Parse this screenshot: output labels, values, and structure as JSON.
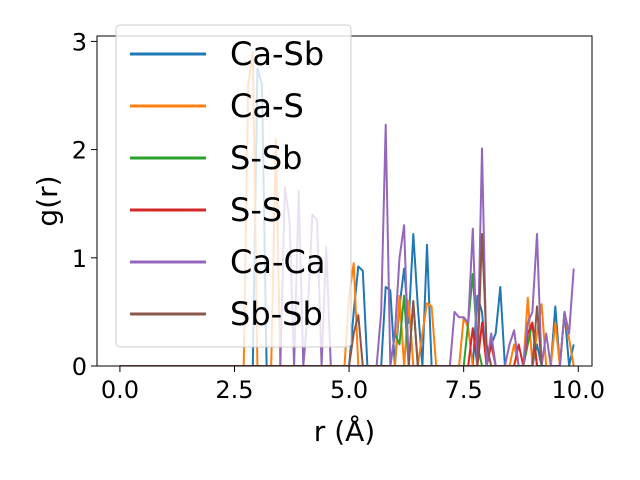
{
  "chart_data": {
    "type": "line",
    "xlabel": "r (Å)",
    "ylabel": "g(r)",
    "xlim": [
      -0.5,
      10.3
    ],
    "ylim": [
      0,
      3.05
    ],
    "xticks": [
      "0.0",
      "2.5",
      "5.0",
      "7.5",
      "10.0"
    ],
    "xtick_values": [
      0,
      2.5,
      5,
      7.5,
      10
    ],
    "yticks": [
      "0",
      "1",
      "2",
      "3"
    ],
    "ytick_values": [
      0,
      1,
      2,
      3
    ],
    "grid": false,
    "legend_position": "upper-left",
    "series": [
      {
        "name": "Ca-Sb",
        "color": "#1f77b4",
        "x": [
          0,
          2.7,
          2.8,
          2.9,
          3.0,
          3.1,
          3.2,
          3.3,
          3.4,
          3.5,
          3.6,
          3.7,
          3.8,
          3.9,
          4.0,
          4.1,
          4.2,
          4.3,
          4.4,
          4.5,
          4.6,
          4.7,
          4.8,
          4.9,
          5.0,
          5.1,
          5.2,
          5.3,
          5.4,
          5.5,
          5.6,
          5.7,
          5.8,
          5.9,
          6.0,
          6.1,
          6.2,
          6.3,
          6.4,
          6.5,
          6.6,
          6.7,
          6.8,
          6.9,
          7.0,
          7.1,
          7.2,
          7.3,
          7.4,
          7.5,
          7.6,
          7.7,
          7.8,
          7.9,
          8.0,
          8.1,
          8.2,
          8.3,
          8.4,
          8.5,
          8.6,
          8.7,
          8.8,
          8.9,
          9.0,
          9.1,
          9.2,
          9.3,
          9.4,
          9.5,
          9.6,
          9.7,
          9.8,
          9.9
        ],
        "y": [
          0,
          0,
          0,
          0,
          2.75,
          2.6,
          0,
          0,
          0,
          0,
          0,
          0,
          0,
          0,
          0,
          0,
          0,
          0,
          0,
          0,
          0,
          0,
          0,
          0,
          0,
          0.5,
          0.92,
          0.88,
          0,
          0,
          0,
          0,
          0.73,
          0.7,
          0,
          0.55,
          0.9,
          0.4,
          1.22,
          0.55,
          0,
          1.12,
          0,
          0,
          0,
          0,
          0,
          0,
          0,
          0,
          0,
          0,
          0.65,
          0.5,
          0,
          0.2,
          0.3,
          0.73,
          0,
          0,
          0,
          0,
          0,
          0,
          0,
          0.2,
          0,
          0,
          0,
          0.55,
          0,
          0.5,
          0,
          0.2
        ]
      },
      {
        "name": "Ca-S",
        "color": "#ff7f0e",
        "x": [
          0,
          2.7,
          2.8,
          2.9,
          3.0,
          3.1,
          3.2,
          3.3,
          3.4,
          3.5,
          3.6,
          3.7,
          3.8,
          3.9,
          4.0,
          4.1,
          4.2,
          4.3,
          4.4,
          4.5,
          4.6,
          4.7,
          4.8,
          4.9,
          5.0,
          5.1,
          5.2,
          5.3,
          5.4,
          5.5,
          5.6,
          5.7,
          5.8,
          5.9,
          6.0,
          6.1,
          6.2,
          6.3,
          6.4,
          6.5,
          6.6,
          6.7,
          6.8,
          6.9,
          7.0,
          7.1,
          7.2,
          7.3,
          7.4,
          7.5,
          7.6,
          7.7,
          7.8,
          7.9,
          8.0,
          8.1,
          8.2,
          8.3,
          8.4,
          8.5,
          8.6,
          8.7,
          8.8,
          8.9,
          9.0,
          9.1,
          9.2,
          9.3,
          9.4,
          9.5,
          9.6,
          9.7,
          9.8,
          9.9
        ],
        "y": [
          0,
          0,
          2.6,
          2.9,
          0,
          0,
          0,
          0,
          2.1,
          0,
          0,
          0,
          0,
          0,
          0,
          0,
          0,
          0,
          0,
          0,
          0,
          0,
          0,
          0,
          0.65,
          0.95,
          0,
          0,
          0,
          0,
          0,
          0,
          0,
          0,
          0,
          0.65,
          0,
          0.6,
          0,
          0,
          0.3,
          0.58,
          0.55,
          0,
          0,
          0,
          0,
          0,
          0,
          0.45,
          0.35,
          0,
          0,
          0,
          0,
          0,
          0,
          0,
          0,
          0,
          0.2,
          0,
          0,
          0.63,
          0,
          0.3,
          0.57,
          0,
          0,
          0.4,
          0,
          0.5,
          0.25,
          0
        ]
      },
      {
        "name": "S-Sb",
        "color": "#2ca02c",
        "x": [
          0,
          5.9,
          6.0,
          6.1,
          6.2,
          6.3,
          6.4,
          6.5,
          7.4,
          7.5,
          7.6,
          7.7,
          7.8,
          7.9,
          8.8,
          8.9,
          9.0,
          9.1,
          9.2
        ],
        "y": [
          0,
          0,
          0.3,
          0.2,
          0.65,
          0,
          0.6,
          0,
          0,
          0,
          0.4,
          0.85,
          0.2,
          0,
          0,
          0.2,
          0.4,
          0,
          0
        ]
      },
      {
        "name": "S-S",
        "color": "#d62728",
        "x": [
          0,
          6.9,
          7.0,
          7.1,
          7.2,
          7.6,
          7.7,
          7.8,
          7.9,
          8.0,
          8.1,
          8.2,
          8.3,
          8.6,
          8.7,
          8.8,
          8.9,
          9.0,
          9.1
        ],
        "y": [
          0,
          0,
          0,
          0,
          0,
          0,
          0.35,
          0,
          0.4,
          0,
          0.2,
          0,
          0,
          0,
          0.2,
          0,
          0.3,
          0.4,
          0
        ]
      },
      {
        "name": "Ca-Ca",
        "color": "#9467bd",
        "x": [
          0,
          3.4,
          3.5,
          3.6,
          3.7,
          3.8,
          3.9,
          4.0,
          4.1,
          4.2,
          4.3,
          4.4,
          4.5,
          4.6,
          5.5,
          5.6,
          5.7,
          5.8,
          5.9,
          6.0,
          6.1,
          6.2,
          6.3,
          6.9,
          7.0,
          7.1,
          7.2,
          7.3,
          7.4,
          7.5,
          7.6,
          7.7,
          7.8,
          7.9,
          8.0,
          8.1,
          8.2,
          8.3,
          8.4,
          8.5,
          8.6,
          8.7,
          8.8,
          8.9,
          9.0,
          9.1,
          9.2,
          9.3,
          9.4,
          9.5,
          9.6,
          9.7,
          9.8,
          9.9
        ],
        "y": [
          0,
          0,
          0,
          1.65,
          1.35,
          0,
          1.62,
          0,
          0.5,
          1.4,
          1.35,
          0,
          1.1,
          0,
          0,
          0,
          0.5,
          2.23,
          0,
          0.3,
          1.0,
          1.3,
          0,
          0,
          0,
          0,
          0,
          0.5,
          0.45,
          0.45,
          0.4,
          1.27,
          0,
          2.01,
          0,
          0.3,
          0,
          0,
          0,
          0.2,
          0.33,
          0,
          0,
          0.4,
          0.5,
          1.22,
          0,
          0.3,
          0,
          0,
          0,
          0.5,
          0.3,
          0.9
        ]
      },
      {
        "name": "Sb-Sb",
        "color": "#8c564b",
        "x": [
          0,
          4.9,
          5.0,
          5.1,
          5.2,
          5.3,
          6.3,
          6.4,
          6.5,
          7.6,
          7.7,
          7.8,
          7.9,
          8.0,
          8.1,
          9.0,
          9.1,
          9.2
        ],
        "y": [
          0,
          0,
          0,
          0.3,
          0.47,
          0,
          0,
          0.6,
          0,
          0,
          0,
          0,
          1.22,
          0.2,
          0,
          0,
          0.55,
          0
        ]
      }
    ]
  }
}
